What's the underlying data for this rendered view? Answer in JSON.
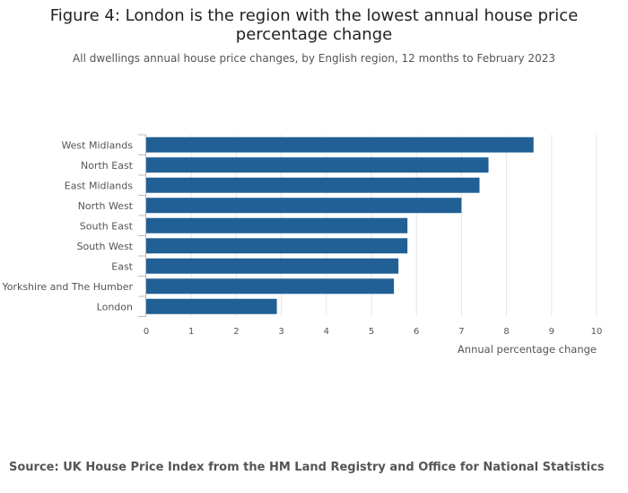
{
  "chart_data": {
    "type": "bar",
    "orientation": "horizontal",
    "title": "Figure 4: London is the region with the lowest annual house price percentage change",
    "subtitle": "All dwellings annual house price changes, by English region, 12 months to February 2023",
    "categories": [
      "West Midlands",
      "North East",
      "East Midlands",
      "North West",
      "South East",
      "South West",
      "East",
      "Yorkshire and The Humber",
      "London"
    ],
    "values": [
      8.6,
      7.6,
      7.4,
      7.0,
      5.8,
      5.8,
      5.6,
      5.5,
      2.9
    ],
    "xlabel": "Annual percentage change",
    "ylabel": "",
    "xlim": [
      0,
      10
    ],
    "xticks": [
      0,
      1,
      2,
      3,
      4,
      5,
      6,
      7,
      8,
      9,
      10
    ],
    "grid": true,
    "bar_color": "#206095"
  },
  "source": "Source: UK House Price Index from the HM Land Registry and Office for National Statistics"
}
